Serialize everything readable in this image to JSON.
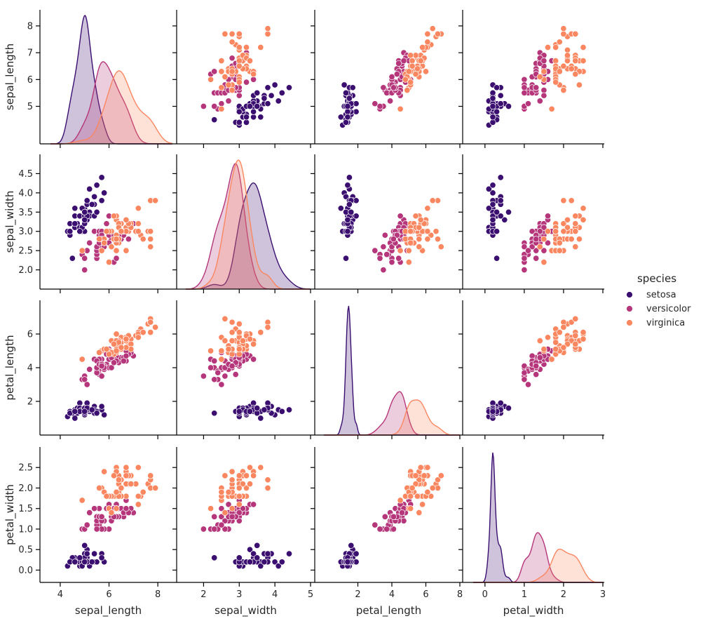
{
  "chart_data": {
    "type": "scatter",
    "variables": [
      "sepal_length",
      "sepal_width",
      "petal_length",
      "petal_width"
    ],
    "axis_labels": {
      "sepal_length": "sepal_length",
      "sepal_width": "sepal_width",
      "petal_length": "petal_length",
      "petal_width": "petal_width"
    },
    "ranges": {
      "sepal_length": [
        3.6,
        8.6
      ],
      "sepal_width": [
        1.5,
        5.0
      ],
      "petal_length": [
        0.0,
        8.0
      ],
      "petal_width": [
        -0.3,
        3.0
      ]
    },
    "ticks": {
      "x": {
        "sepal_length": [
          4,
          6,
          8
        ],
        "sepal_width": [
          2,
          3,
          4,
          5
        ],
        "petal_length": [
          2,
          4,
          6,
          8
        ],
        "petal_width": [
          0,
          1,
          2,
          3
        ]
      },
      "y": {
        "sepal_length": [
          5,
          6,
          7,
          8
        ],
        "sepal_width": [
          2.0,
          2.5,
          3.0,
          3.5,
          4.0,
          4.5
        ],
        "petal_length": [
          2,
          4,
          6
        ],
        "petal_width": [
          0.0,
          0.5,
          1.0,
          1.5,
          2.0,
          2.5
        ]
      }
    },
    "y_tick_format": {
      "sepal_length": 0,
      "sepal_width": 1,
      "petal_length": 0,
      "petal_width": 1
    },
    "diagonal": "kde",
    "legend": {
      "title": "species",
      "position": "right",
      "entries": [
        {
          "name": "setosa",
          "color": "#3b0f70"
        },
        {
          "name": "versicolor",
          "color": "#b5367a"
        },
        {
          "name": "virginica",
          "color": "#fb8761"
        }
      ]
    },
    "grid": false,
    "series": [
      {
        "name": "setosa",
        "color": "#3b0f70",
        "points": [
          [
            5.1,
            3.5,
            1.4,
            0.2
          ],
          [
            4.9,
            3.0,
            1.4,
            0.2
          ],
          [
            4.7,
            3.2,
            1.3,
            0.2
          ],
          [
            4.6,
            3.1,
            1.5,
            0.2
          ],
          [
            5.0,
            3.6,
            1.4,
            0.2
          ],
          [
            5.4,
            3.9,
            1.7,
            0.4
          ],
          [
            4.6,
            3.4,
            1.4,
            0.3
          ],
          [
            5.0,
            3.4,
            1.5,
            0.2
          ],
          [
            4.4,
            2.9,
            1.4,
            0.2
          ],
          [
            4.9,
            3.1,
            1.5,
            0.1
          ],
          [
            5.4,
            3.7,
            1.5,
            0.2
          ],
          [
            4.8,
            3.4,
            1.6,
            0.2
          ],
          [
            4.8,
            3.0,
            1.4,
            0.1
          ],
          [
            4.3,
            3.0,
            1.1,
            0.1
          ],
          [
            5.8,
            4.0,
            1.2,
            0.2
          ],
          [
            5.7,
            4.4,
            1.5,
            0.4
          ],
          [
            5.4,
            3.9,
            1.3,
            0.4
          ],
          [
            5.1,
            3.5,
            1.4,
            0.3
          ],
          [
            5.7,
            3.8,
            1.7,
            0.3
          ],
          [
            5.1,
            3.8,
            1.5,
            0.3
          ],
          [
            5.4,
            3.4,
            1.7,
            0.2
          ],
          [
            5.1,
            3.7,
            1.5,
            0.4
          ],
          [
            4.6,
            3.6,
            1.0,
            0.2
          ],
          [
            5.1,
            3.3,
            1.7,
            0.5
          ],
          [
            4.8,
            3.4,
            1.9,
            0.2
          ],
          [
            5.0,
            3.0,
            1.6,
            0.2
          ],
          [
            5.0,
            3.4,
            1.6,
            0.4
          ],
          [
            5.2,
            3.5,
            1.5,
            0.2
          ],
          [
            5.2,
            3.4,
            1.4,
            0.2
          ],
          [
            4.7,
            3.2,
            1.6,
            0.2
          ],
          [
            4.8,
            3.1,
            1.6,
            0.2
          ],
          [
            5.4,
            3.4,
            1.5,
            0.4
          ],
          [
            5.2,
            4.1,
            1.5,
            0.1
          ],
          [
            5.5,
            4.2,
            1.4,
            0.2
          ],
          [
            4.9,
            3.1,
            1.5,
            0.2
          ],
          [
            5.0,
            3.2,
            1.2,
            0.2
          ],
          [
            5.5,
            3.5,
            1.3,
            0.2
          ],
          [
            4.9,
            3.6,
            1.4,
            0.1
          ],
          [
            4.4,
            3.0,
            1.3,
            0.2
          ],
          [
            5.1,
            3.4,
            1.5,
            0.2
          ],
          [
            5.0,
            3.5,
            1.3,
            0.3
          ],
          [
            4.5,
            2.3,
            1.3,
            0.3
          ],
          [
            4.4,
            3.2,
            1.3,
            0.2
          ],
          [
            5.0,
            3.5,
            1.6,
            0.6
          ],
          [
            5.1,
            3.8,
            1.9,
            0.4
          ],
          [
            4.8,
            3.0,
            1.4,
            0.3
          ],
          [
            5.1,
            3.8,
            1.6,
            0.2
          ],
          [
            4.6,
            3.2,
            1.4,
            0.2
          ],
          [
            5.3,
            3.7,
            1.5,
            0.2
          ],
          [
            5.0,
            3.3,
            1.4,
            0.2
          ]
        ]
      },
      {
        "name": "versicolor",
        "color": "#b5367a",
        "points": [
          [
            7.0,
            3.2,
            4.7,
            1.4
          ],
          [
            6.4,
            3.2,
            4.5,
            1.5
          ],
          [
            6.9,
            3.1,
            4.9,
            1.5
          ],
          [
            5.5,
            2.3,
            4.0,
            1.3
          ],
          [
            6.5,
            2.8,
            4.6,
            1.5
          ],
          [
            5.7,
            2.8,
            4.5,
            1.3
          ],
          [
            6.3,
            3.3,
            4.7,
            1.6
          ],
          [
            4.9,
            2.4,
            3.3,
            1.0
          ],
          [
            6.6,
            2.9,
            4.6,
            1.3
          ],
          [
            5.2,
            2.7,
            3.9,
            1.4
          ],
          [
            5.0,
            2.0,
            3.5,
            1.0
          ],
          [
            5.9,
            3.0,
            4.2,
            1.5
          ],
          [
            6.0,
            2.2,
            4.0,
            1.0
          ],
          [
            6.1,
            2.9,
            4.7,
            1.4
          ],
          [
            5.6,
            2.9,
            3.6,
            1.3
          ],
          [
            6.7,
            3.1,
            4.4,
            1.4
          ],
          [
            5.6,
            3.0,
            4.5,
            1.5
          ],
          [
            5.8,
            2.7,
            4.1,
            1.0
          ],
          [
            6.2,
            2.2,
            4.5,
            1.5
          ],
          [
            5.6,
            2.5,
            3.9,
            1.1
          ],
          [
            5.9,
            3.2,
            4.8,
            1.8
          ],
          [
            6.1,
            2.8,
            4.0,
            1.3
          ],
          [
            6.3,
            2.5,
            4.9,
            1.5
          ],
          [
            6.1,
            2.8,
            4.7,
            1.2
          ],
          [
            6.4,
            2.9,
            4.3,
            1.3
          ],
          [
            6.6,
            3.0,
            4.4,
            1.4
          ],
          [
            6.8,
            2.8,
            4.8,
            1.4
          ],
          [
            6.7,
            3.0,
            5.0,
            1.7
          ],
          [
            6.0,
            2.9,
            4.5,
            1.5
          ],
          [
            5.7,
            2.6,
            3.5,
            1.0
          ],
          [
            5.5,
            2.4,
            3.8,
            1.1
          ],
          [
            5.5,
            2.4,
            3.7,
            1.0
          ],
          [
            5.8,
            2.7,
            3.9,
            1.2
          ],
          [
            6.0,
            2.7,
            5.1,
            1.6
          ],
          [
            5.4,
            3.0,
            4.5,
            1.5
          ],
          [
            6.0,
            3.4,
            4.5,
            1.6
          ],
          [
            6.7,
            3.1,
            4.7,
            1.5
          ],
          [
            6.3,
            2.3,
            4.4,
            1.3
          ],
          [
            5.6,
            3.0,
            4.1,
            1.3
          ],
          [
            5.5,
            2.5,
            4.0,
            1.3
          ],
          [
            5.5,
            2.6,
            4.4,
            1.2
          ],
          [
            6.1,
            3.0,
            4.6,
            1.4
          ],
          [
            5.8,
            2.6,
            4.0,
            1.2
          ],
          [
            5.0,
            2.3,
            3.3,
            1.0
          ],
          [
            5.6,
            2.7,
            4.2,
            1.3
          ],
          [
            5.7,
            3.0,
            4.2,
            1.2
          ],
          [
            5.7,
            2.9,
            4.2,
            1.3
          ],
          [
            6.2,
            2.9,
            4.3,
            1.3
          ],
          [
            5.1,
            2.5,
            3.0,
            1.1
          ],
          [
            5.7,
            2.8,
            4.1,
            1.3
          ]
        ]
      },
      {
        "name": "virginica",
        "color": "#fb8761",
        "points": [
          [
            6.3,
            3.3,
            6.0,
            2.5
          ],
          [
            5.8,
            2.7,
            5.1,
            1.9
          ],
          [
            7.1,
            3.0,
            5.9,
            2.1
          ],
          [
            6.3,
            2.9,
            5.6,
            1.8
          ],
          [
            6.5,
            3.0,
            5.8,
            2.2
          ],
          [
            7.6,
            3.0,
            6.6,
            2.1
          ],
          [
            4.9,
            2.5,
            4.5,
            1.7
          ],
          [
            7.3,
            2.9,
            6.3,
            1.8
          ],
          [
            6.7,
            2.5,
            5.8,
            1.8
          ],
          [
            7.2,
            3.6,
            6.1,
            2.5
          ],
          [
            6.5,
            3.2,
            5.1,
            2.0
          ],
          [
            6.4,
            2.7,
            5.3,
            1.9
          ],
          [
            6.8,
            3.0,
            5.5,
            2.1
          ],
          [
            5.7,
            2.5,
            5.0,
            2.0
          ],
          [
            5.8,
            2.8,
            5.1,
            2.4
          ],
          [
            6.4,
            3.2,
            5.3,
            2.3
          ],
          [
            6.5,
            3.0,
            5.5,
            1.8
          ],
          [
            7.7,
            3.8,
            6.7,
            2.2
          ],
          [
            7.7,
            2.6,
            6.9,
            2.3
          ],
          [
            6.0,
            2.2,
            5.0,
            1.5
          ],
          [
            6.9,
            3.2,
            5.7,
            2.3
          ],
          [
            5.6,
            2.8,
            4.9,
            2.0
          ],
          [
            7.7,
            2.8,
            6.7,
            2.0
          ],
          [
            6.3,
            2.7,
            4.9,
            1.8
          ],
          [
            6.7,
            3.3,
            5.7,
            2.1
          ],
          [
            7.2,
            3.2,
            6.0,
            1.8
          ],
          [
            6.2,
            2.8,
            4.8,
            1.8
          ],
          [
            6.1,
            3.0,
            4.9,
            1.8
          ],
          [
            6.4,
            2.8,
            5.6,
            2.1
          ],
          [
            7.2,
            3.0,
            5.8,
            1.6
          ],
          [
            7.4,
            2.8,
            6.1,
            1.9
          ],
          [
            7.9,
            3.8,
            6.4,
            2.0
          ],
          [
            6.4,
            2.8,
            5.6,
            2.2
          ],
          [
            6.3,
            2.8,
            5.1,
            1.5
          ],
          [
            6.1,
            2.6,
            5.6,
            1.4
          ],
          [
            7.7,
            3.0,
            6.1,
            2.3
          ],
          [
            6.3,
            3.4,
            5.6,
            2.4
          ],
          [
            6.4,
            3.1,
            5.5,
            1.8
          ],
          [
            6.0,
            3.0,
            4.8,
            1.8
          ],
          [
            6.9,
            3.1,
            5.4,
            2.1
          ],
          [
            6.7,
            3.1,
            5.6,
            2.4
          ],
          [
            6.9,
            3.1,
            5.1,
            2.3
          ],
          [
            5.8,
            2.7,
            5.1,
            1.9
          ],
          [
            6.8,
            3.2,
            5.9,
            2.3
          ],
          [
            6.7,
            3.3,
            5.7,
            2.5
          ],
          [
            6.7,
            3.0,
            5.2,
            2.3
          ],
          [
            6.3,
            2.5,
            5.0,
            1.9
          ],
          [
            6.5,
            3.0,
            5.2,
            2.0
          ],
          [
            6.2,
            3.4,
            5.4,
            2.3
          ],
          [
            5.9,
            3.0,
            5.1,
            1.8
          ]
        ]
      }
    ]
  }
}
